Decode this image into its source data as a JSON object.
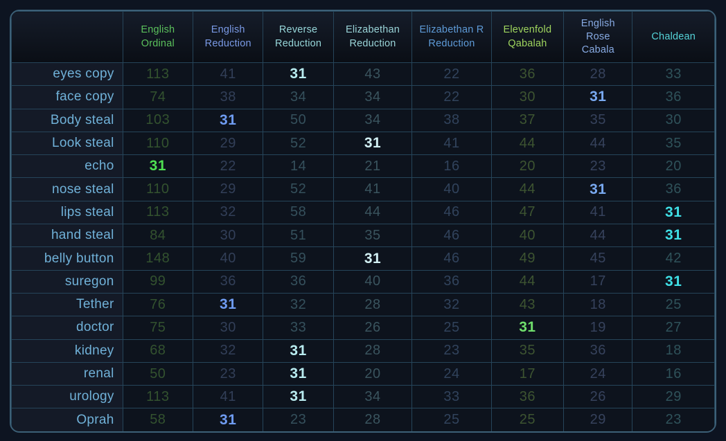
{
  "table": {
    "corner_label": "",
    "columns": [
      {
        "label": "English Ordinal",
        "color": "#5bc15c",
        "dim_color": "#33522f",
        "highlight_color": "#4fe052"
      },
      {
        "label": "English Reduction",
        "color": "#7a9ae6",
        "dim_color": "#323f58",
        "highlight_color": "#6f9cf2"
      },
      {
        "label": "Reverse Reduction",
        "color": "#97d7da",
        "dim_color": "#35505c",
        "highlight_color": "#b9ecf0"
      },
      {
        "label": "Elizabethan Reduction",
        "color": "#9ad4d8",
        "dim_color": "#3a545e",
        "highlight_color": "#d2f0f4"
      },
      {
        "label": "Elizabethan R Reduction",
        "color": "#5e9bd8",
        "dim_color": "#31435c",
        "highlight_color": "#6aa6e8"
      },
      {
        "label": "Elevenfold Qabalah",
        "color": "#9fd55e",
        "dim_color": "#3d5431",
        "highlight_color": "#70df6c"
      },
      {
        "label": "English Rose Cabala",
        "color": "#88abe4",
        "dim_color": "#36425c",
        "highlight_color": "#79a9f0"
      },
      {
        "label": "Chaldean",
        "color": "#55d3d8",
        "dim_color": "#2f525a",
        "highlight_color": "#3fe0e6"
      }
    ],
    "rows": [
      {
        "word": "eyes copy",
        "values": [
          113,
          41,
          31,
          43,
          22,
          36,
          28,
          33
        ],
        "highlight_index": 2
      },
      {
        "word": "face copy",
        "values": [
          74,
          38,
          34,
          34,
          22,
          30,
          31,
          36
        ],
        "highlight_index": 6
      },
      {
        "word": "Body steal",
        "values": [
          103,
          31,
          50,
          34,
          38,
          37,
          35,
          30
        ],
        "highlight_index": 1
      },
      {
        "word": "Look steal",
        "values": [
          110,
          29,
          52,
          31,
          41,
          44,
          44,
          35
        ],
        "highlight_index": 3
      },
      {
        "word": "echo",
        "values": [
          31,
          22,
          14,
          21,
          16,
          20,
          23,
          20
        ],
        "highlight_index": 0
      },
      {
        "word": "nose steal",
        "values": [
          110,
          29,
          52,
          41,
          40,
          44,
          31,
          36
        ],
        "highlight_index": 6
      },
      {
        "word": "lips steal",
        "values": [
          113,
          32,
          58,
          44,
          46,
          47,
          41,
          31
        ],
        "highlight_index": 7
      },
      {
        "word": "hand steal",
        "values": [
          84,
          30,
          51,
          35,
          46,
          40,
          44,
          31
        ],
        "highlight_index": 7
      },
      {
        "word": "belly button",
        "values": [
          148,
          40,
          59,
          31,
          46,
          49,
          45,
          42
        ],
        "highlight_index": 3
      },
      {
        "word": "suregon",
        "values": [
          99,
          36,
          36,
          40,
          36,
          44,
          17,
          31
        ],
        "highlight_index": 7
      },
      {
        "word": "Tether",
        "values": [
          76,
          31,
          32,
          28,
          32,
          43,
          18,
          25
        ],
        "highlight_index": 1
      },
      {
        "word": "doctor",
        "values": [
          75,
          30,
          33,
          26,
          25,
          31,
          19,
          27
        ],
        "highlight_index": 5
      },
      {
        "word": "kidney",
        "values": [
          68,
          32,
          31,
          28,
          23,
          35,
          36,
          18
        ],
        "highlight_index": 2
      },
      {
        "word": "renal",
        "values": [
          50,
          23,
          31,
          20,
          24,
          17,
          24,
          16
        ],
        "highlight_index": 2
      },
      {
        "word": "urology",
        "values": [
          113,
          41,
          31,
          34,
          33,
          36,
          26,
          29
        ],
        "highlight_index": 2
      },
      {
        "word": "Oprah",
        "values": [
          58,
          31,
          23,
          28,
          25,
          25,
          29,
          23
        ],
        "highlight_index": 1
      }
    ]
  }
}
